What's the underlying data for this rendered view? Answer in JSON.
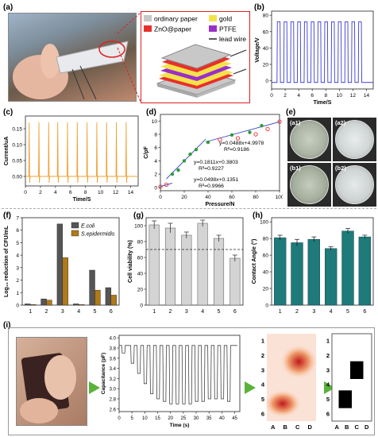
{
  "panel_labels": {
    "a": "(a)",
    "b": "(b)",
    "c": "(c)",
    "d": "(d)",
    "e": "(e)",
    "f": "(f)",
    "g": "(g)",
    "h": "(h)",
    "i": "(i)"
  },
  "legend_a": {
    "ordinary": "ordinary paper",
    "gold": "gold",
    "zno": "ZnO@paper",
    "ptfe": "PTFE",
    "wire": "lead wire"
  },
  "colors": {
    "ordinary": "#c8c8c8",
    "gold": "#f3e24a",
    "zno": "#e8302a",
    "ptfe": "#9b2fc9",
    "wire": "#222222",
    "blue": "#3b3bd4",
    "orange": "#f0a030",
    "red": "#e53030",
    "green": "#2e9a3a",
    "ecoli": "#555555",
    "sepi": "#b07a18",
    "teal": "#1f7a7a",
    "gray_bar": "#d4d4d4"
  },
  "chart_b": {
    "type": "line",
    "ylabel": "Voltage/V",
    "xlabel": "Time/S",
    "xticks": [
      "0",
      "2",
      "4",
      "6",
      "8",
      "10",
      "12",
      "14"
    ],
    "yticks": [
      "0",
      "20",
      "40",
      "60",
      "80"
    ],
    "xlim": [
      0,
      15
    ],
    "ylim": [
      -10,
      85
    ],
    "pulses": [
      0.8,
      1.8,
      2.8,
      3.8,
      4.8,
      5.8,
      6.8,
      7.8,
      8.8,
      9.8,
      10.8,
      11.8,
      12.8
    ],
    "high": 72,
    "low": -2
  },
  "chart_c": {
    "type": "line",
    "ylabel": "Current/uA",
    "xlabel": "Time/S",
    "xticks": [
      "0",
      "2",
      "4",
      "6",
      "8",
      "10",
      "12",
      "14"
    ],
    "yticks": [
      "0.00",
      "0.05",
      "0.10",
      "0.15"
    ],
    "xlim": [
      0,
      15
    ],
    "ylim": [
      -0.03,
      0.19
    ],
    "spikes": [
      0.5,
      1.8,
      3.1,
      4.3,
      5.6,
      6.9,
      8.2,
      9.5,
      10.8,
      12.1,
      13.4
    ],
    "peak": 0.17
  },
  "chart_d": {
    "type": "scatter",
    "ylabel": "C/pF",
    "xlabel": "Pressure/N",
    "xticks": [
      "0",
      "20",
      "40",
      "60",
      "80",
      "100"
    ],
    "yticks": [
      "0",
      "2",
      "4",
      "6",
      "8",
      "10"
    ],
    "xlim": [
      0,
      100
    ],
    "ylim": [
      -0.5,
      11
    ],
    "points_red": [
      [
        0,
        0.1
      ],
      [
        5,
        0.4
      ],
      [
        50,
        7.2
      ],
      [
        65,
        7.4
      ],
      [
        80,
        8.0
      ],
      [
        90,
        8.8
      ],
      [
        100,
        9.9
      ]
    ],
    "points_green": [
      [
        10,
        2.0
      ],
      [
        15,
        2.6
      ],
      [
        20,
        4.0
      ],
      [
        25,
        5.0
      ],
      [
        30,
        5.7
      ],
      [
        40,
        6.8
      ],
      [
        60,
        7.9
      ],
      [
        75,
        8.3
      ],
      [
        85,
        9.3
      ]
    ],
    "fits": [
      {
        "x": [
          0,
          10
        ],
        "slope": 0.0498,
        "icept": 0.1351
      },
      {
        "x": [
          5,
          38
        ],
        "slope": 0.1811,
        "icept": 0.3803
      },
      {
        "x": [
          38,
          100
        ],
        "slope": 0.0488,
        "icept": 4.9978
      }
    ],
    "annotations": [
      {
        "eq": "y=0.0488x+4.9978",
        "r2": "R²=0.9186"
      },
      {
        "eq": "y=0.1811x+0.3803",
        "r2": "R²=0.9227"
      },
      {
        "eq": "y=0.0498x+0.1351",
        "r2": "R²=0.9966"
      }
    ]
  },
  "dishes_e": [
    {
      "label": "(a1)"
    },
    {
      "label": "(a2)"
    },
    {
      "label": "(b1)"
    },
    {
      "label": "(b2)"
    }
  ],
  "chart_f": {
    "type": "bar",
    "ylabel": "Log₁₀ reduction of CFU/mL",
    "categories": [
      "1",
      "2",
      "3",
      "4",
      "5",
      "6"
    ],
    "yticks": [
      "0",
      "1",
      "2",
      "3",
      "4",
      "5",
      "6",
      "7"
    ],
    "ylim": [
      0,
      7
    ],
    "series": [
      {
        "name": "E.coli",
        "values": [
          0.1,
          0.5,
          6.5,
          0.1,
          2.8,
          1.4
        ]
      },
      {
        "name": "S.epidermidis",
        "values": [
          0.05,
          0.4,
          3.8,
          0.05,
          1.2,
          0.8
        ]
      }
    ]
  },
  "chart_g": {
    "type": "bar",
    "ylabel": "Cell viability (%)",
    "categories": [
      "1",
      "2",
      "3",
      "4",
      "5",
      "6"
    ],
    "yticks": [
      "0",
      "20",
      "40",
      "60",
      "80",
      "100"
    ],
    "ylim": [
      0,
      110
    ],
    "values": [
      101,
      97,
      88,
      103,
      84,
      59
    ],
    "errors": [
      5,
      6,
      4,
      4,
      4,
      4
    ],
    "threshold": 70
  },
  "chart_h": {
    "type": "bar",
    "ylabel": "Contact Angle (°)",
    "categories": [
      "1",
      "2",
      "3",
      "4",
      "5",
      "6"
    ],
    "yticks": [
      "0",
      "20",
      "40",
      "60",
      "80",
      "100"
    ],
    "ylim": [
      0,
      105
    ],
    "values": [
      81,
      75,
      79,
      68,
      89,
      82
    ],
    "errors": [
      3,
      4,
      3,
      2,
      3,
      2
    ]
  },
  "chart_i": {
    "type": "line",
    "ylabel": "Capacitance (pF)",
    "xlabel": "Time (s)",
    "xticks": [
      "0",
      "5",
      "10",
      "15",
      "20",
      "25",
      "30",
      "35",
      "40",
      "45"
    ],
    "yticks": [
      "2.6",
      "2.8",
      "3.0",
      "3.2",
      "3.4",
      "3.6",
      "3.8",
      "4.0"
    ],
    "xlim": [
      0,
      47
    ],
    "ylim": [
      2.55,
      4.05
    ],
    "high": 3.85,
    "low": 2.65,
    "pulses": [
      [
        1,
        3.7
      ],
      [
        4.5,
        3.5
      ],
      [
        7,
        3.3
      ],
      [
        9.5,
        3.1
      ],
      [
        12,
        2.9
      ],
      [
        14.5,
        2.8
      ],
      [
        17,
        2.75
      ],
      [
        19.5,
        2.7
      ],
      [
        22,
        2.7
      ],
      [
        24.5,
        2.7
      ],
      [
        27,
        2.7
      ],
      [
        29.5,
        2.75
      ],
      [
        32,
        2.75
      ],
      [
        34.5,
        2.8
      ],
      [
        37,
        2.8
      ],
      [
        39.5,
        2.8
      ],
      [
        42,
        2.75
      ]
    ]
  },
  "grid_i": {
    "rows": [
      "1",
      "2",
      "3",
      "4",
      "5",
      "6"
    ],
    "cols": [
      "A",
      "B",
      "C",
      "D"
    ]
  }
}
